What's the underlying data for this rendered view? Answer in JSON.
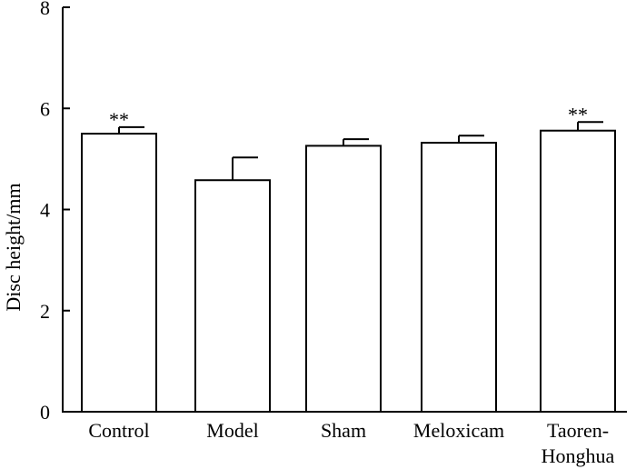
{
  "chart_data": {
    "type": "bar",
    "title": "",
    "xlabel": "",
    "ylabel": "Disc height/mm",
    "ylim": [
      0,
      8
    ],
    "yticks": [
      "0",
      "2",
      "4",
      "6",
      "8"
    ],
    "ytick_values": [
      0,
      2,
      4,
      6,
      8
    ],
    "categories": [
      {
        "lines": [
          "Control"
        ]
      },
      {
        "lines": [
          "Model"
        ]
      },
      {
        "lines": [
          "Sham"
        ]
      },
      {
        "lines": [
          "Meloxicam"
        ]
      },
      {
        "lines": [
          "Taoren-",
          "Honghua"
        ]
      }
    ],
    "values": [
      5.5,
      4.58,
      5.26,
      5.32,
      5.56
    ],
    "errors": [
      0.13,
      0.45,
      0.13,
      0.14,
      0.17
    ],
    "significance": [
      "**",
      "",
      "",
      "",
      "**"
    ]
  }
}
